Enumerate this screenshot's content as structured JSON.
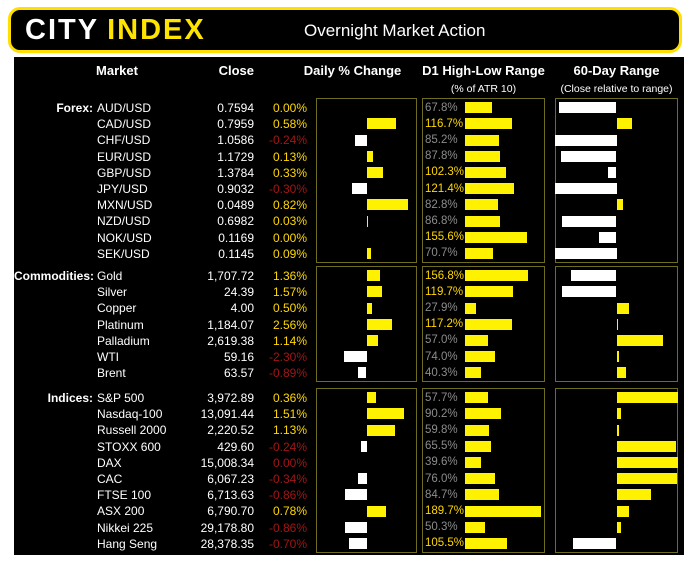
{
  "header": {
    "logo_city": "CITY",
    "logo_index": "INDEX",
    "title": "Overnight Market Action"
  },
  "columns": {
    "market": "Market",
    "close": "Close",
    "daily": "Daily % Change",
    "d1": "D1 High-Low Range",
    "d1_sub": "(% of ATR 10)",
    "range60": "60-Day Range",
    "range60_sub": "(Close relative to range)"
  },
  "colors": {
    "page_background": "#ffffff",
    "panel_background": "#000000",
    "accent_yellow_text": "#ffd800",
    "bar_yellow": "#fff200",
    "bar_white": "#ffffff",
    "negative_red": "#a31515",
    "muted_gray": "#8c8c8c",
    "box_border": "#6f6b1f",
    "header_border": "#ffdf00"
  },
  "chart_data": {
    "type": "table",
    "notes": "daily_pct drawn as bar from center (yellow right = up, white left = down); atr_pct bar scale 0-200%; range60_pos_pct = close position in 60-day range, bar drawn from 50% midpoint (white left if below, yellow right if above)",
    "atr_axis_max_pct": 200,
    "range60_axis": [
      0,
      100
    ],
    "sections": [
      {
        "label": "Forex:",
        "daily_axis_max_pct": 1,
        "rows": [
          {
            "market": "AUD/USD",
            "close": "0.7594",
            "daily_label": "0.00%",
            "daily_pct": 0.0,
            "dir": "up",
            "atr_pct": 67.8,
            "atr_label": "67.8%",
            "range60_pos_pct": 3
          },
          {
            "market": "CAD/USD",
            "close": "0.7959",
            "daily_label": "0.58%",
            "daily_pct": 0.58,
            "dir": "up",
            "atr_pct": 116.7,
            "atr_label": "116.7%",
            "range60_pos_pct": 63
          },
          {
            "market": "CHF/USD",
            "close": "1.0586",
            "daily_label": "-0.24%",
            "daily_pct": -0.24,
            "dir": "down",
            "atr_pct": 85.2,
            "atr_label": "85.2%",
            "range60_pos_pct": 0
          },
          {
            "market": "EUR/USD",
            "close": "1.1729",
            "daily_label": "0.13%",
            "daily_pct": 0.13,
            "dir": "up",
            "atr_pct": 87.8,
            "atr_label": "87.8%",
            "range60_pos_pct": 5
          },
          {
            "market": "GBP/USD",
            "close": "1.3784",
            "daily_label": "0.33%",
            "daily_pct": 0.33,
            "dir": "up",
            "atr_pct": 102.3,
            "atr_label": "102.3%",
            "range60_pos_pct": 43
          },
          {
            "market": "JPY/USD",
            "close": "0.9032",
            "daily_label": "-0.30%",
            "daily_pct": -0.3,
            "dir": "down",
            "atr_pct": 121.4,
            "atr_label": "121.4%",
            "range60_pos_pct": 0
          },
          {
            "market": "MXN/USD",
            "close": "0.0489",
            "daily_label": "0.82%",
            "daily_pct": 0.82,
            "dir": "up",
            "atr_pct": 82.8,
            "atr_label": "82.8%",
            "range60_pos_pct": 55
          },
          {
            "market": "NZD/USD",
            "close": "0.6982",
            "daily_label": "0.03%",
            "daily_pct": 0.03,
            "dir": "up",
            "atr_pct": 86.8,
            "atr_label": "86.8%",
            "range60_pos_pct": 6
          },
          {
            "market": "NOK/USD",
            "close": "0.1169",
            "daily_label": "0.00%",
            "daily_pct": 0.0,
            "dir": "up",
            "atr_pct": 155.6,
            "atr_label": "155.6%",
            "range60_pos_pct": 36
          },
          {
            "market": "SEK/USD",
            "close": "0.1145",
            "daily_label": "0.09%",
            "daily_pct": 0.09,
            "dir": "up",
            "atr_pct": 70.7,
            "atr_label": "70.7%",
            "range60_pos_pct": 0
          }
        ]
      },
      {
        "label": "Commodities:",
        "daily_axis_max_pct": 5,
        "rows": [
          {
            "market": "Gold",
            "close": "1,707.72",
            "daily_label": "1.36%",
            "daily_pct": 1.36,
            "dir": "up",
            "atr_pct": 156.8,
            "atr_label": "156.8%",
            "range60_pos_pct": 13
          },
          {
            "market": "Silver",
            "close": "24.39",
            "daily_label": "1.57%",
            "daily_pct": 1.57,
            "dir": "up",
            "atr_pct": 119.7,
            "atr_label": "119.7%",
            "range60_pos_pct": 6
          },
          {
            "market": "Copper",
            "close": "4.00",
            "daily_label": "0.50%",
            "daily_pct": 0.5,
            "dir": "up",
            "atr_pct": 27.9,
            "atr_label": "27.9%",
            "range60_pos_pct": 60
          },
          {
            "market": "Platinum",
            "close": "1,184.07",
            "daily_label": "2.56%",
            "daily_pct": 2.56,
            "dir": "up",
            "atr_pct": 117.2,
            "atr_label": "117.2%",
            "range60_pos_pct": 51
          },
          {
            "market": "Palladium",
            "close": "2,619.38",
            "daily_label": "1.14%",
            "daily_pct": 1.14,
            "dir": "up",
            "atr_pct": 57.0,
            "atr_label": "57.0%",
            "range60_pos_pct": 88
          },
          {
            "market": "WTI",
            "close": "59.16",
            "daily_label": "-2.30%",
            "daily_pct": -2.3,
            "dir": "down",
            "atr_pct": 74.0,
            "atr_label": "74.0%",
            "range60_pos_pct": 52
          },
          {
            "market": "Brent",
            "close": "63.57",
            "daily_label": "-0.89%",
            "daily_pct": -0.89,
            "dir": "down",
            "atr_pct": 40.3,
            "atr_label": "40.3%",
            "range60_pos_pct": 58
          }
        ]
      },
      {
        "label": "Indices:",
        "daily_axis_max_pct": 2,
        "rows": [
          {
            "market": "S&P 500",
            "close": "3,972.89",
            "daily_label": "0.36%",
            "daily_pct": 0.36,
            "dir": "up",
            "atr_pct": 57.7,
            "atr_label": "57.7%",
            "range60_pos_pct": 100
          },
          {
            "market": "Nasdaq-100",
            "close": "13,091.44",
            "daily_label": "1.51%",
            "daily_pct": 1.51,
            "dir": "up",
            "atr_pct": 90.2,
            "atr_label": "90.2%",
            "range60_pos_pct": 54
          },
          {
            "market": "Russell 2000",
            "close": "2,220.52",
            "daily_label": "1.13%",
            "daily_pct": 1.13,
            "dir": "up",
            "atr_pct": 59.8,
            "atr_label": "59.8%",
            "range60_pos_pct": 52
          },
          {
            "market": "STOXX 600",
            "close": "429.60",
            "daily_label": "-0.24%",
            "daily_pct": -0.24,
            "dir": "down",
            "atr_pct": 65.5,
            "atr_label": "65.5%",
            "range60_pos_pct": 98
          },
          {
            "market": "DAX",
            "close": "15,008.34",
            "daily_label": "0.00%",
            "daily_pct": 0.0,
            "dir": "down",
            "atr_pct": 39.6,
            "atr_label": "39.6%",
            "range60_pos_pct": 100
          },
          {
            "market": "CAC",
            "close": "6,067.23",
            "daily_label": "-0.34%",
            "daily_pct": -0.34,
            "dir": "down",
            "atr_pct": 76.0,
            "atr_label": "76.0%",
            "range60_pos_pct": 99
          },
          {
            "market": "FTSE 100",
            "close": "6,713.63",
            "daily_label": "-0.86%",
            "daily_pct": -0.86,
            "dir": "down",
            "atr_pct": 84.7,
            "atr_label": "84.7%",
            "range60_pos_pct": 78
          },
          {
            "market": "ASX 200",
            "close": "6,790.70",
            "daily_label": "0.78%",
            "daily_pct": 0.78,
            "dir": "up",
            "atr_pct": 189.7,
            "atr_label": "189.7%",
            "range60_pos_pct": 60
          },
          {
            "market": "Nikkei 225",
            "close": "29,178.80",
            "daily_label": "-0.86%",
            "daily_pct": -0.86,
            "dir": "down",
            "atr_pct": 50.3,
            "atr_label": "50.3%",
            "range60_pos_pct": 54
          },
          {
            "market": "Hang Seng",
            "close": "28,378.35",
            "daily_label": "-0.70%",
            "daily_pct": -0.7,
            "dir": "down",
            "atr_pct": 105.5,
            "atr_label": "105.5%",
            "range60_pos_pct": 15
          }
        ]
      }
    ]
  }
}
